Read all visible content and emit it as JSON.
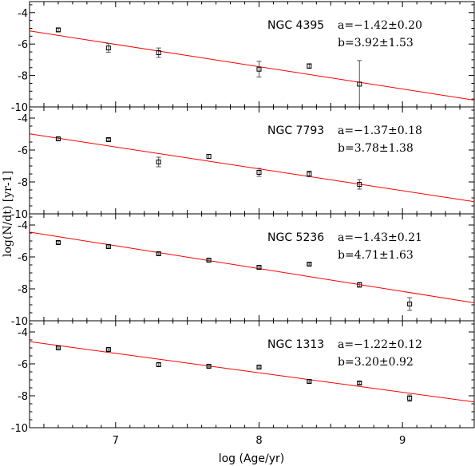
{
  "chart_data": {
    "type": "scatter",
    "xlabel": "log (Age/yr)",
    "ylabel": "log(N/dt)  [yr-1]",
    "xlim": [
      6.4,
      9.5
    ],
    "ylim": [
      -10,
      -3.3
    ],
    "x_ticks": [
      7,
      8,
      9
    ],
    "x_tick_labels": [
      "7",
      "8",
      "9"
    ],
    "y_ticks": [
      -4,
      -6,
      -8,
      -10
    ],
    "y_tick_labels": [
      "-4",
      "-6",
      "-8",
      "-10"
    ],
    "grid": false,
    "panels": [
      {
        "galaxy": "NGC 4395",
        "a_text": "a=−1.42±0.20",
        "b_text": "b=3.92±1.53",
        "fit": {
          "slope": -1.42,
          "intercept": 3.92
        },
        "points": [
          {
            "x": 6.6,
            "y": -5.1,
            "err": 0.1
          },
          {
            "x": 6.95,
            "y": -6.25,
            "err": 0.28
          },
          {
            "x": 7.3,
            "y": -6.55,
            "err": 0.3
          },
          {
            "x": 8.0,
            "y": -7.6,
            "err": 0.5
          },
          {
            "x": 8.35,
            "y": -7.4,
            "err": 0.15
          },
          {
            "x": 8.7,
            "y": -8.55,
            "err": 1.5
          }
        ]
      },
      {
        "galaxy": "NGC 7793",
        "a_text": "a=−1.37±0.18",
        "b_text": "b=3.78±1.38",
        "fit": {
          "slope": -1.37,
          "intercept": 3.78
        },
        "points": [
          {
            "x": 6.6,
            "y": -5.3,
            "err": 0.1
          },
          {
            "x": 6.95,
            "y": -5.35,
            "err": 0.08
          },
          {
            "x": 7.3,
            "y": -6.75,
            "err": 0.3
          },
          {
            "x": 7.65,
            "y": -6.4,
            "err": 0.12
          },
          {
            "x": 8.0,
            "y": -7.4,
            "err": 0.25
          },
          {
            "x": 8.35,
            "y": -7.5,
            "err": 0.18
          },
          {
            "x": 8.7,
            "y": -8.15,
            "err": 0.3
          }
        ]
      },
      {
        "galaxy": "NGC 5236",
        "a_text": "a=−1.43±0.21",
        "b_text": "b=4.71±1.63",
        "fit": {
          "slope": -1.43,
          "intercept": 4.71
        },
        "points": [
          {
            "x": 6.6,
            "y": -5.1,
            "err": 0.07
          },
          {
            "x": 6.95,
            "y": -5.35,
            "err": 0.06
          },
          {
            "x": 7.3,
            "y": -5.8,
            "err": 0.06
          },
          {
            "x": 7.65,
            "y": -6.2,
            "err": 0.06
          },
          {
            "x": 8.0,
            "y": -6.65,
            "err": 0.06
          },
          {
            "x": 8.35,
            "y": -6.45,
            "err": 0.06
          },
          {
            "x": 8.7,
            "y": -7.75,
            "err": 0.15
          },
          {
            "x": 9.05,
            "y": -8.95,
            "err": 0.4
          }
        ]
      },
      {
        "galaxy": "NGC 1313",
        "a_text": "a=−1.22±0.12",
        "b_text": "b=3.20±0.92",
        "fit": {
          "slope": -1.22,
          "intercept": 3.2
        },
        "points": [
          {
            "x": 6.6,
            "y": -5.0,
            "err": 0.06
          },
          {
            "x": 6.95,
            "y": -5.1,
            "err": 0.06
          },
          {
            "x": 7.3,
            "y": -6.05,
            "err": 0.1
          },
          {
            "x": 7.65,
            "y": -6.15,
            "err": 0.06
          },
          {
            "x": 8.0,
            "y": -6.2,
            "err": 0.06
          },
          {
            "x": 8.35,
            "y": -7.1,
            "err": 0.06
          },
          {
            "x": 8.7,
            "y": -7.2,
            "err": 0.08
          },
          {
            "x": 9.05,
            "y": -8.15,
            "err": 0.2
          }
        ]
      }
    ],
    "colors": {
      "fit_line": "#ff0000",
      "points": "#000000"
    }
  }
}
